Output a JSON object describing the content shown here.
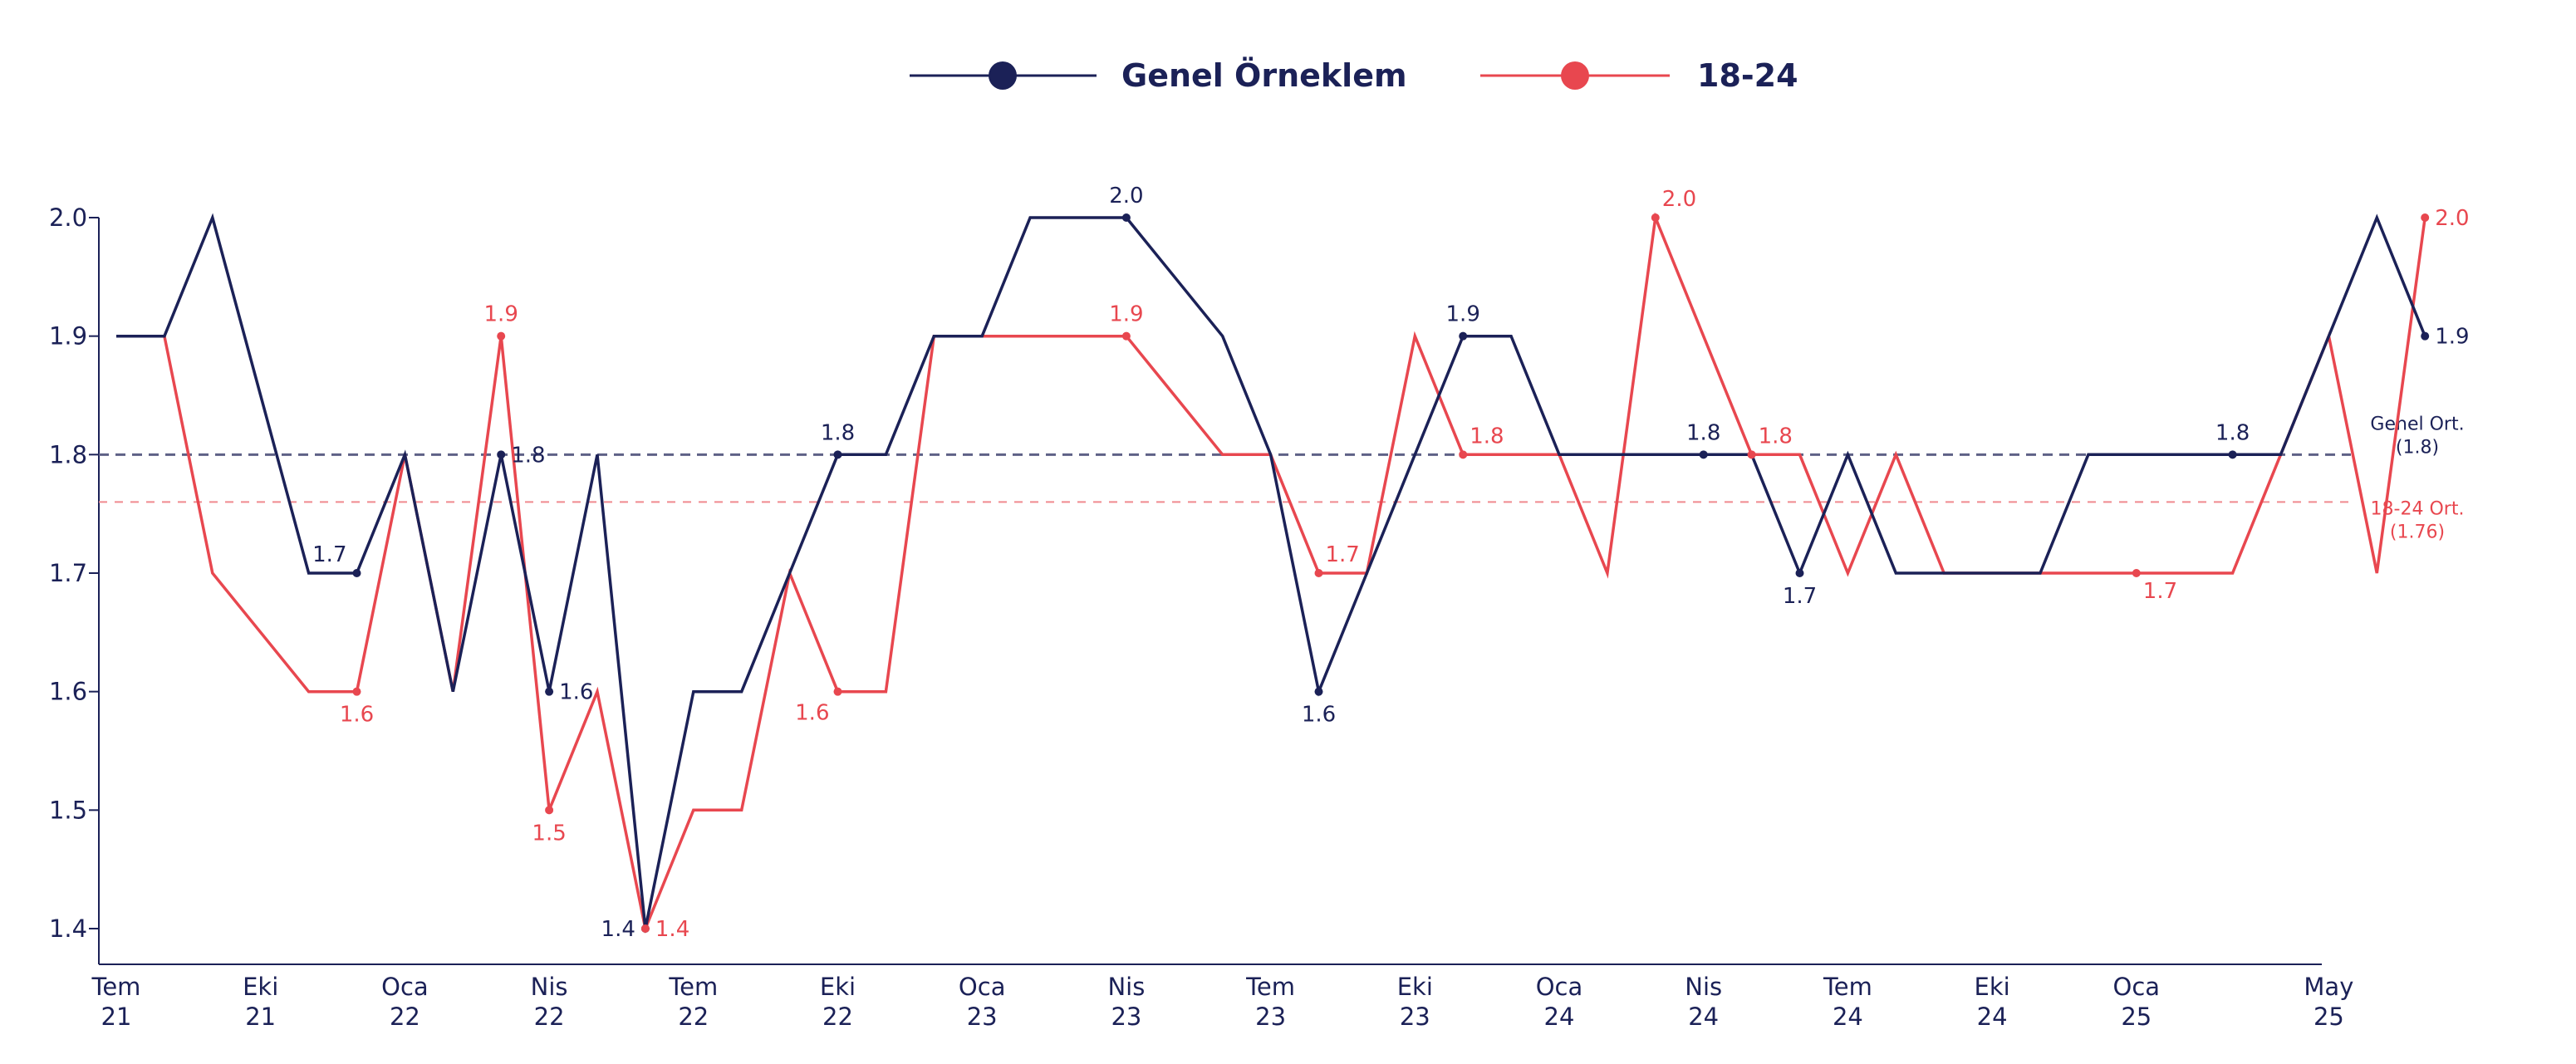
{
  "chart_data": {
    "type": "line",
    "x_labels": [
      [
        "Tem",
        "21"
      ],
      [
        "Eki",
        "21"
      ],
      [
        "Oca",
        "22"
      ],
      [
        "Nis",
        "22"
      ],
      [
        "Tem",
        "22"
      ],
      [
        "Eki",
        "22"
      ],
      [
        "Oca",
        "23"
      ],
      [
        "Nis",
        "23"
      ],
      [
        "Tem",
        "23"
      ],
      [
        "Eki",
        "23"
      ],
      [
        "Oca",
        "24"
      ],
      [
        "Nis",
        "24"
      ],
      [
        "Tem",
        "24"
      ],
      [
        "Eki",
        "24"
      ],
      [
        "Oca",
        "25"
      ],
      [
        "May",
        "25"
      ]
    ],
    "y_ticks": [
      "1.4",
      "1.5",
      "1.6",
      "1.7",
      "1.8",
      "1.9",
      "2.0"
    ],
    "ylim": [
      1.4,
      2.0
    ],
    "legend_position": "top",
    "series": [
      {
        "name": "Genel Örneklem",
        "color": "#1b2157",
        "values": [
          1.9,
          1.9,
          2.0,
          1.85,
          1.7,
          1.7,
          1.8,
          1.6,
          1.8,
          1.6,
          1.8,
          1.4,
          1.6,
          1.6,
          1.7,
          1.8,
          1.8,
          1.9,
          1.9,
          2.0,
          2.0,
          2.0,
          1.95,
          1.9,
          1.8,
          1.6,
          1.7,
          1.8,
          1.9,
          1.9,
          1.8,
          1.8,
          1.8,
          1.8,
          1.8,
          1.7,
          1.8,
          1.7,
          1.7,
          1.7,
          1.7,
          1.8,
          1.8,
          1.8,
          1.8,
          1.8,
          1.9,
          2.0,
          1.9
        ],
        "labels": [
          {
            "i": 5,
            "text": "1.7",
            "pos": "above-left"
          },
          {
            "i": 8,
            "text": "1.8",
            "pos": "right"
          },
          {
            "i": 9,
            "text": "1.6",
            "pos": "right"
          },
          {
            "i": 11,
            "text": "1.4",
            "pos": "left"
          },
          {
            "i": 15,
            "text": "1.8",
            "pos": "above"
          },
          {
            "i": 21,
            "text": "2.0",
            "pos": "above"
          },
          {
            "i": 25,
            "text": "1.6",
            "pos": "below"
          },
          {
            "i": 28,
            "text": "1.9",
            "pos": "above"
          },
          {
            "i": 33,
            "text": "1.8",
            "pos": "above"
          },
          {
            "i": 35,
            "text": "1.7",
            "pos": "below"
          },
          {
            "i": 44,
            "text": "1.8",
            "pos": "above"
          },
          {
            "i": 48,
            "text": "1.9",
            "pos": "right"
          }
        ]
      },
      {
        "name": "18-24",
        "color": "#e8474f",
        "values": [
          1.9,
          1.9,
          1.7,
          1.65,
          1.6,
          1.6,
          1.8,
          1.6,
          1.9,
          1.5,
          1.6,
          1.4,
          1.5,
          1.5,
          1.7,
          1.6,
          1.6,
          1.9,
          1.9,
          1.9,
          1.9,
          1.9,
          1.85,
          1.8,
          1.8,
          1.7,
          1.7,
          1.9,
          1.8,
          1.8,
          1.8,
          1.7,
          2.0,
          1.9,
          1.8,
          1.8,
          1.7,
          1.8,
          1.7,
          1.7,
          1.7,
          1.7,
          1.7,
          1.7,
          1.7,
          1.8,
          1.9,
          1.7,
          2.0
        ],
        "labels": [
          {
            "i": 5,
            "text": "1.6",
            "pos": "below"
          },
          {
            "i": 8,
            "text": "1.9",
            "pos": "above"
          },
          {
            "i": 9,
            "text": "1.5",
            "pos": "below"
          },
          {
            "i": 11,
            "text": "1.4",
            "pos": "right"
          },
          {
            "i": 15,
            "text": "1.6",
            "pos": "below-left"
          },
          {
            "i": 21,
            "text": "1.9",
            "pos": "above"
          },
          {
            "i": 25,
            "text": "1.7",
            "pos": "above-right"
          },
          {
            "i": 28,
            "text": "1.8",
            "pos": "above-right"
          },
          {
            "i": 32,
            "text": "2.0",
            "pos": "above-right"
          },
          {
            "i": 34,
            "text": "1.8",
            "pos": "above-right"
          },
          {
            "i": 42,
            "text": "1.7",
            "pos": "below-right"
          },
          {
            "i": 48,
            "text": "2.0",
            "pos": "right"
          }
        ]
      }
    ],
    "averages": [
      {
        "name": "Genel Ort.",
        "value_text": "(1.8)",
        "value": 1.8,
        "color": "#1b2157",
        "line_color": "#5e6186"
      },
      {
        "name": "18-24 Ort.",
        "value_text": "(1.76)",
        "value": 1.76,
        "color": "#e8474f",
        "line_color": "#f08a8f"
      }
    ]
  }
}
